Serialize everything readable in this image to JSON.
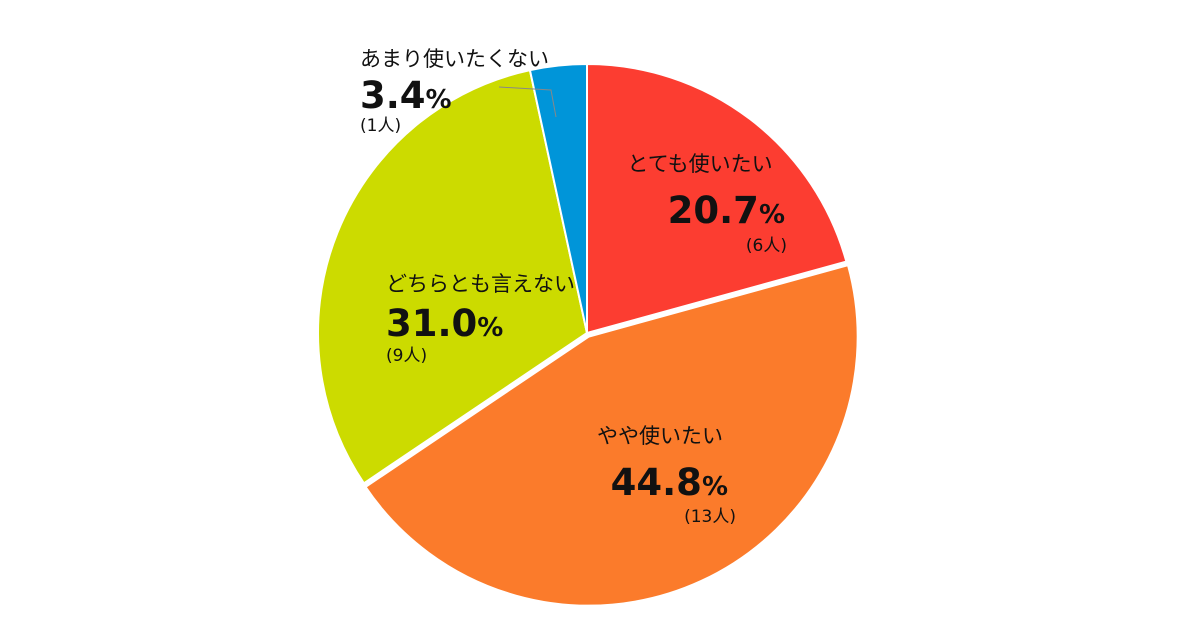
{
  "chart_data": {
    "type": "pie",
    "title": "",
    "slices": [
      {
        "label": "とても使いたい",
        "value": 20.7,
        "percent": "20.7",
        "count": "(6人)",
        "color": "#fc3d31"
      },
      {
        "label": "やや使いたい",
        "value": 44.8,
        "percent": "44.8",
        "count": "(13人)",
        "color": "#fb7b2b"
      },
      {
        "label": "どちらとも言えない",
        "value": 31.0,
        "percent": "31.0",
        "count": "(9人)",
        "color": "#ccdb00"
      },
      {
        "label": "あまり使いたくない",
        "value": 3.4,
        "percent": "3.4",
        "count": "(1人)",
        "color": "#0095d9"
      }
    ],
    "percent_sign": "%",
    "start_angle": "12 o'clock",
    "direction": "clockwise",
    "exploded_slice": "やや使いたい"
  }
}
